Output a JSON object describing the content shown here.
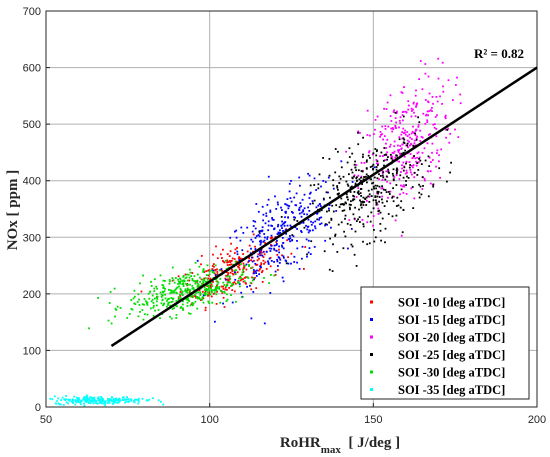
{
  "chart_data": {
    "type": "scatter",
    "xlabel": "RoHR",
    "xlabel_sub": "max",
    "xlabel_rest": "  [ J/deg ]",
    "ylabel": "NOx [ ppm ]",
    "xlim": [
      50,
      200
    ],
    "ylim": [
      0,
      700
    ],
    "xticks": [
      50,
      100,
      150,
      200
    ],
    "yticks": [
      0,
      100,
      200,
      300,
      400,
      500,
      600,
      700
    ],
    "grid": "major",
    "legend_position": "bottom-right",
    "annotation": "R² = 0.82",
    "fit_line": {
      "x": [
        70,
        200
      ],
      "y": [
        108,
        600
      ],
      "color": "#000000"
    },
    "series": [
      {
        "name": "SOI -10 [deg aTDC]",
        "color": "#ff0000",
        "cluster": {
          "center": [
            107,
            240
          ],
          "spread": [
            8,
            22
          ],
          "count": 260,
          "slope": 2.2
        }
      },
      {
        "name": "SOI -15 [deg aTDC]",
        "color": "#0000ff",
        "cluster": {
          "center": [
            122,
            305
          ],
          "spread": [
            9,
            35
          ],
          "count": 330,
          "slope": 3.2
        }
      },
      {
        "name": "SOI -20 [deg aTDC]",
        "color": "#ff00ff",
        "cluster": {
          "center": [
            160,
            465
          ],
          "spread": [
            7,
            55
          ],
          "count": 330,
          "slope": 4.0
        }
      },
      {
        "name": "SOI -25 [deg aTDC]",
        "color": "#000000",
        "cluster": {
          "center": [
            149,
            385
          ],
          "spread": [
            9,
            40
          ],
          "count": 380,
          "slope": 2.4
        }
      },
      {
        "name": "SOI -30 [deg aTDC]",
        "color": "#00dd00",
        "cluster": {
          "center": [
            93,
            205
          ],
          "spread": [
            9,
            18
          ],
          "count": 430,
          "slope": 1.3
        }
      },
      {
        "name": "SOI -35 [deg aTDC]",
        "color": "#00ffff",
        "cluster": {
          "center": [
            66,
            12
          ],
          "spread": [
            7,
            3.5
          ],
          "count": 240,
          "slope": 0
        }
      }
    ]
  }
}
